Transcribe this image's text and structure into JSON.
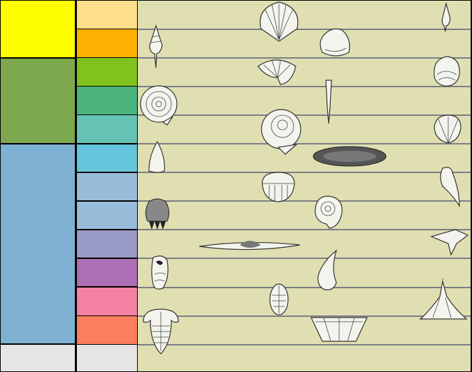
{
  "eras": [
    {
      "id": "cenozoic",
      "color": "#FFFF00"
    },
    {
      "id": "mesozoic",
      "color": "#7DA84D"
    },
    {
      "id": "paleozoic",
      "color": "#7EB1D2"
    },
    {
      "id": "precambrian",
      "color": "#E5E5E5"
    }
  ],
  "periods": [
    {
      "color": "#FEE08C"
    },
    {
      "color": "#FEB000"
    },
    {
      "color": "#80C31C"
    },
    {
      "color": "#4BB37E"
    },
    {
      "color": "#66C3B3"
    },
    {
      "color": "#64C5DC"
    },
    {
      "color": "#99BCDA"
    },
    {
      "color": "#99BCDA"
    },
    {
      "color": "#9899C5"
    },
    {
      "color": "#AF6FB5"
    },
    {
      "color": "#F682A3"
    },
    {
      "color": "#FA7F5F"
    },
    {
      "color": "#E5E5E5"
    }
  ],
  "fossil_area_color": "#E0DFB1",
  "fossils": [
    "spire-shell-icon",
    "scallop-icon",
    "clam-icon",
    "whelk-icon",
    "fan-shell-icon",
    "oyster-icon",
    "ammonite-icon",
    "belemnite-icon",
    "brachiopod-icon",
    "coiled-ammonite-icon",
    "flat-fossil-icon",
    "cone-shell-icon",
    "horn-coral-icon",
    "ribbed-brachiopod-icon",
    "snail-icon",
    "crinoid-icon",
    "spiriferid-icon",
    "wing-shell-icon",
    "gastropod-icon",
    "teardrop-shell-icon",
    "small-trilobite-icon",
    "cystoid-icon",
    "trilobite-icon",
    "fan-brachiopod-icon"
  ]
}
